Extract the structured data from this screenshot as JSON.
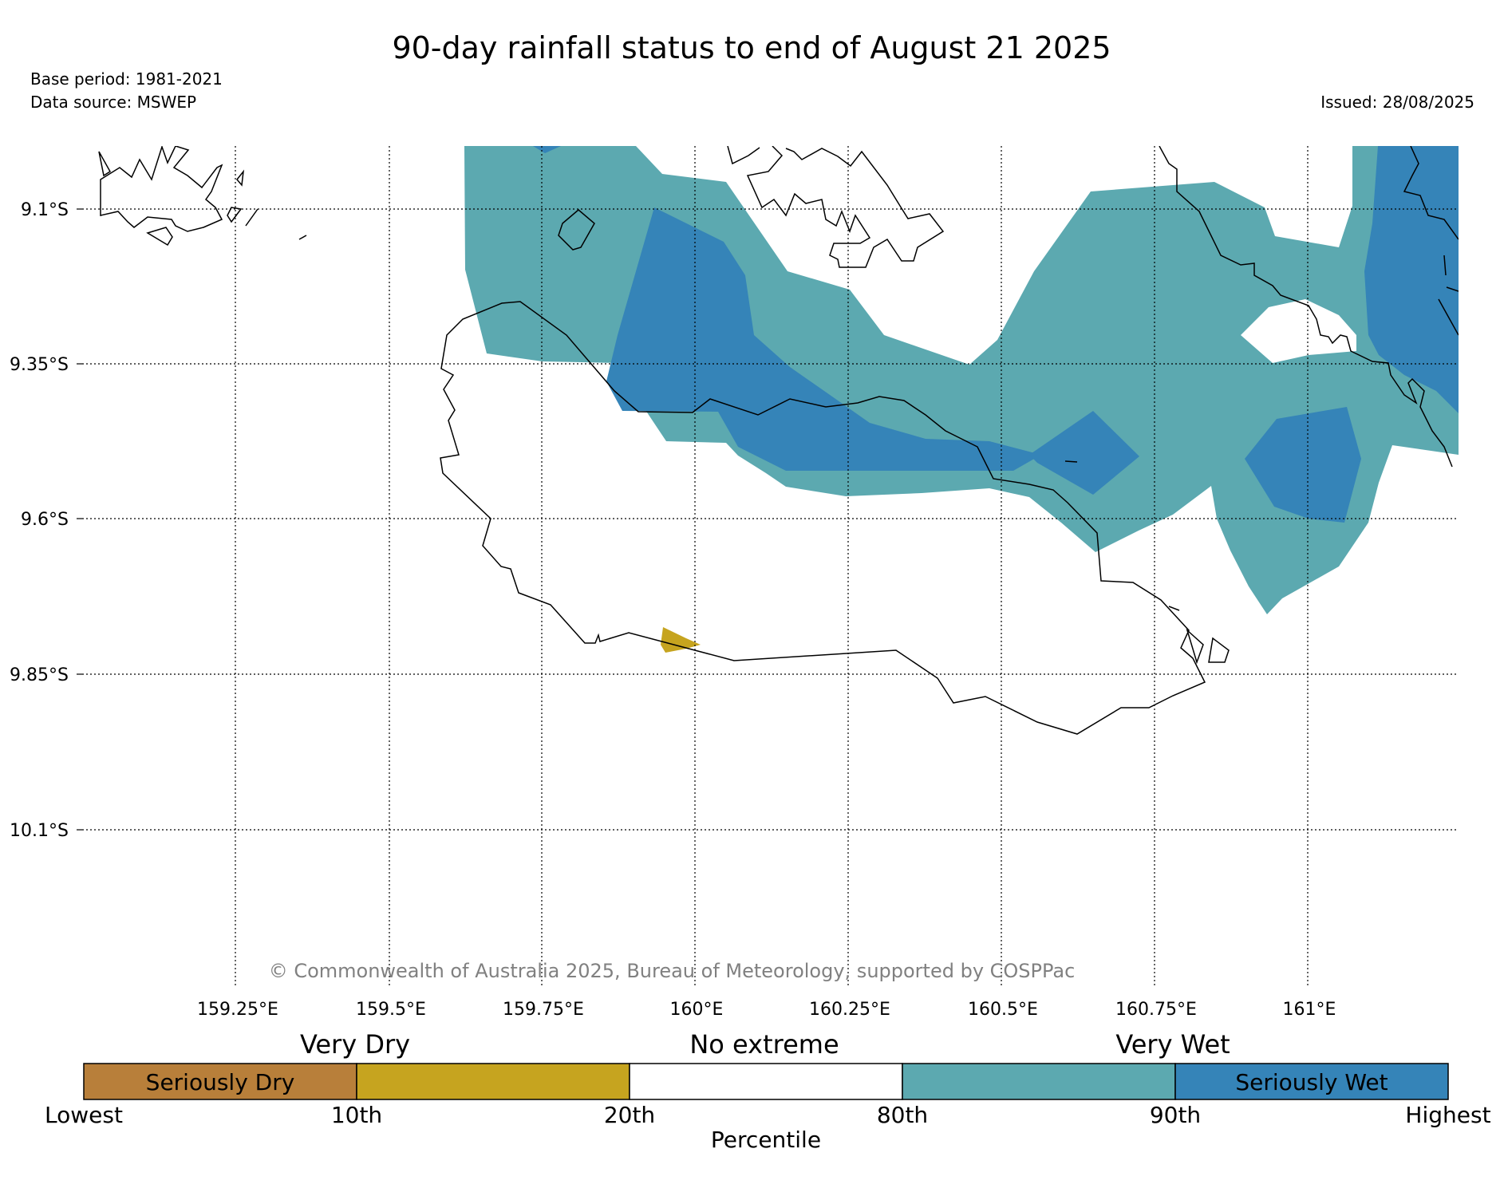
{
  "title": "90-day rainfall status to end of August 21 2025",
  "base_period": "Base period: 1981-2021",
  "data_source": "Data source: MSWEP",
  "issued": "Issued: 28/08/2025",
  "copyright": "© Commonwealth of Australia 2025, Bureau of Meteorology, supported by COSPPac",
  "lat_labels": [
    "9.1°S",
    "9.35°S",
    "9.6°S",
    "9.85°S",
    "10.1°S"
  ],
  "lon_labels": [
    "159.25°E",
    "159.5°E",
    "159.75°E",
    "160°E",
    "160.25°E",
    "160.5°E",
    "160.75°E",
    "161°E"
  ],
  "legend": {
    "group_labels": [
      "Very Dry",
      "No extreme",
      "Very Wet"
    ],
    "segment_labels": [
      "Seriously Dry",
      "",
      "",
      "",
      "Seriously Wet"
    ],
    "tick_labels": [
      "Lowest",
      "10th",
      "20th",
      "80th",
      "90th",
      "Highest"
    ],
    "axis_label": "Percentile",
    "colors": [
      "#b87f3a",
      "#c6a41f",
      "#ffffff",
      "#5ca9b0",
      "#3584b8"
    ]
  },
  "colors": {
    "very_wet": "#5ca9b0",
    "seriously_wet": "#3584b8",
    "very_dry": "#c6a41f",
    "seriously_dry": "#b87f3a"
  }
}
